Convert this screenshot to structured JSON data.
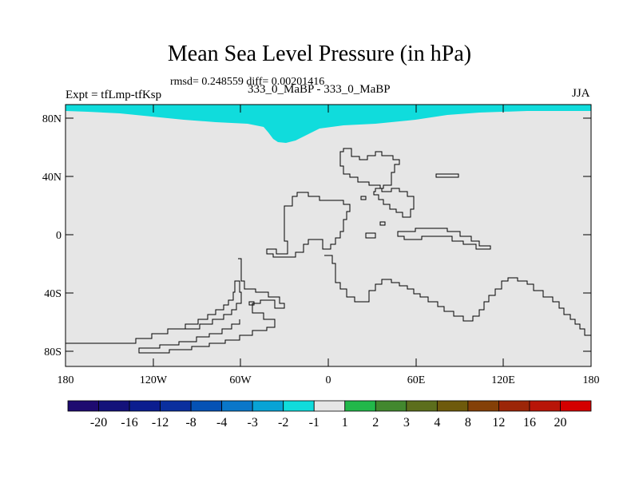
{
  "title": "Mean Sea Level Pressure (in hPa)",
  "stats": "rmsd= 0.248559 diff= 0.00201416",
  "left_label": "Expt = tfLmp-tfKsp",
  "center_label": "333_0_MaBP - 333_0_MaBP",
  "right_label": "JJA",
  "y_ticks": [
    "80N",
    "40N",
    "0",
    "40S",
    "80S"
  ],
  "x_ticks": [
    "180",
    "120W",
    "60W",
    "0",
    "60E",
    "120E",
    "180"
  ],
  "colorbar": {
    "labels": [
      "-20",
      "-16",
      "-12",
      "-8",
      "-4",
      "-3",
      "-2",
      "-1",
      "1",
      "2",
      "3",
      "4",
      "8",
      "12",
      "16",
      "20"
    ],
    "colors": [
      "#1e0b70",
      "#14127a",
      "#0b1d8f",
      "#0a2f9e",
      "#0552b5",
      "#0a77c9",
      "#08a3d6",
      "#10dcdc",
      "#e6e6e6",
      "#22b84a",
      "#42882e",
      "#5c6e1c",
      "#6e5a0c",
      "#844008",
      "#9c2608",
      "#b81508",
      "#d40000"
    ]
  },
  "colors": {
    "background_field": "#e6e6e6",
    "anomaly_fill": "#10dcdc",
    "contour": "#000000"
  }
}
